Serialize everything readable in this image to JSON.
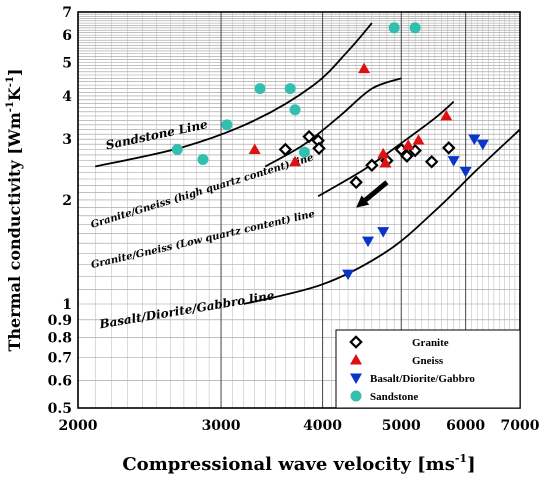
{
  "chart_data": {
    "type": "scatter",
    "xlabel": "Compressional wave velocity [ms",
    "xlabel_sup": "-1",
    "xlabel_end": "]",
    "ylabel": "Thermal conductivity [Wm",
    "ylabel_sup1": "-1",
    "ylabel_mid": "K",
    "ylabel_sup2": "-1",
    "ylabel_end": "]",
    "x_scale": "log",
    "y_scale": "log",
    "xlim": [
      2000,
      7000
    ],
    "ylim": [
      0.5,
      7
    ],
    "x_ticks": [
      {
        "value": 2000,
        "label": "2000"
      },
      {
        "value": 3000,
        "label": "3000"
      },
      {
        "value": 4000,
        "label": "4000"
      },
      {
        "value": 5000,
        "label": "5000"
      },
      {
        "value": 6000,
        "label": "6000"
      },
      {
        "value": 7000,
        "label": "7000"
      }
    ],
    "y_ticks": [
      {
        "value": 0.5,
        "label": "0.5"
      },
      {
        "value": 0.6,
        "label": "0.6"
      },
      {
        "value": 0.7,
        "label": "0.7"
      },
      {
        "value": 0.8,
        "label": "0.8"
      },
      {
        "value": 0.9,
        "label": "0.9"
      },
      {
        "value": 1,
        "label": "1"
      },
      {
        "value": 2,
        "label": "2"
      },
      {
        "value": 3,
        "label": "3"
      },
      {
        "value": 4,
        "label": "4"
      },
      {
        "value": 5,
        "label": "5"
      },
      {
        "value": 6,
        "label": "6"
      },
      {
        "value": 7,
        "label": "7"
      }
    ],
    "grid": true,
    "legend_position": "bottom-right",
    "series": [
      {
        "name": "Granite",
        "marker": "diamond",
        "color": "#000000",
        "points": [
          [
            3600,
            2.8
          ],
          [
            3850,
            3.05
          ],
          [
            3950,
            2.97
          ],
          [
            3960,
            2.82
          ],
          [
            4400,
            2.25
          ],
          [
            4600,
            2.52
          ],
          [
            4800,
            2.6
          ],
          [
            5000,
            2.8
          ],
          [
            5080,
            2.68
          ],
          [
            5200,
            2.78
          ],
          [
            5450,
            2.58
          ],
          [
            5720,
            2.83
          ]
        ]
      },
      {
        "name": "Gneiss",
        "marker": "triangle-up",
        "color": "#dd1111",
        "points": [
          [
            3300,
            2.8
          ],
          [
            3700,
            2.58
          ],
          [
            4500,
            4.8
          ],
          [
            4750,
            2.72
          ],
          [
            4780,
            2.56
          ],
          [
            5100,
            2.88
          ],
          [
            5250,
            2.98
          ],
          [
            5680,
            3.5
          ]
        ]
      },
      {
        "name": "Basalt/Diorite/Gabbro",
        "marker": "triangle-down",
        "color": "#0a36c8",
        "points": [
          [
            4300,
            1.22
          ],
          [
            4550,
            1.52
          ],
          [
            4750,
            1.62
          ],
          [
            5800,
            2.6
          ],
          [
            6000,
            2.42
          ],
          [
            6150,
            3.0
          ],
          [
            6300,
            2.9
          ]
        ]
      },
      {
        "name": "Sandstone",
        "marker": "circle",
        "color": "#33bfb0",
        "points": [
          [
            2650,
            2.8
          ],
          [
            2850,
            2.62
          ],
          [
            3050,
            3.3
          ],
          [
            3350,
            4.2
          ],
          [
            3650,
            4.2
          ],
          [
            3700,
            3.65
          ],
          [
            3800,
            2.75
          ],
          [
            4900,
            6.3
          ],
          [
            5200,
            6.3
          ]
        ]
      }
    ],
    "lines": [
      {
        "name": "Sandstone Line",
        "points": [
          [
            2100,
            2.5
          ],
          [
            2700,
            2.85
          ],
          [
            3300,
            3.4
          ],
          [
            3900,
            4.3
          ],
          [
            4300,
            5.4
          ],
          [
            4600,
            6.5
          ]
        ]
      },
      {
        "name": "Granite/Gneiss (high quartz content) line",
        "points": [
          [
            3400,
            2.5
          ],
          [
            3800,
            2.9
          ],
          [
            4200,
            3.5
          ],
          [
            4600,
            4.2
          ],
          [
            5000,
            4.5
          ]
        ]
      },
      {
        "name": "Granite/Gneiss (Low quartz content) line",
        "points": [
          [
            3950,
            2.05
          ],
          [
            4500,
            2.45
          ],
          [
            5000,
            2.92
          ],
          [
            5500,
            3.45
          ],
          [
            5800,
            3.85
          ]
        ]
      },
      {
        "name": "Basalt/Diorite/Gabbro line",
        "points": [
          [
            3200,
            1.0
          ],
          [
            4000,
            1.14
          ],
          [
            4800,
            1.42
          ],
          [
            5500,
            1.86
          ],
          [
            6200,
            2.45
          ],
          [
            7000,
            3.2
          ]
        ]
      }
    ],
    "annotations": [
      {
        "text": "Sandstone Line",
        "anchor": [
          2170,
          2.8
        ],
        "angle": -12,
        "size": 12
      },
      {
        "text": "Granite/Gneiss (high quartz content) line",
        "anchor": [
          2080,
          1.66
        ],
        "angle": -17,
        "size": 10
      },
      {
        "text": "Granite/Gneiss (Low quartz content) line",
        "anchor": [
          2080,
          1.27
        ],
        "angle": -13,
        "size": 10
      },
      {
        "text": "Basalt/Diorite/Gabbro line",
        "anchor": [
          2130,
          0.85
        ],
        "angle": -9.5,
        "size": 12
      }
    ],
    "arrow": {
      "from": [
        4800,
        2.25
      ],
      "to": [
        4400,
        1.9
      ]
    }
  }
}
